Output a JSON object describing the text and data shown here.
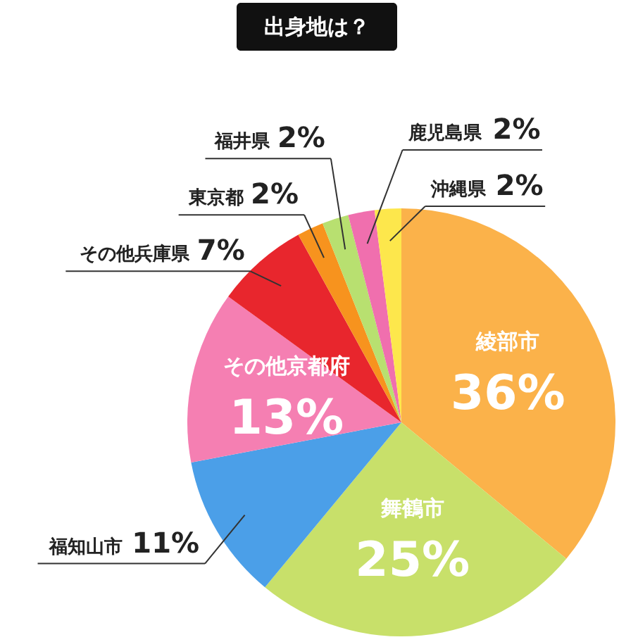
{
  "chart_data": {
    "type": "pie",
    "title": "出身地は？",
    "categories": [
      "綾部市",
      "舞鶴市",
      "福知山市",
      "その他京都府",
      "その他兵庫県",
      "東京都",
      "福井県",
      "鹿児島県",
      "沖縄県"
    ],
    "values": [
      36,
      25,
      11,
      13,
      7,
      2,
      2,
      2,
      2
    ],
    "colors": [
      "#fbb24a",
      "#c8e06a",
      "#4b9fe8",
      "#f57fb2",
      "#e8262d",
      "#f7931e",
      "#b8e070",
      "#f06fae",
      "#fde74c"
    ],
    "value_labels": [
      "36%",
      "25%",
      "11%",
      "13%",
      "7%",
      "2%",
      "2%",
      "2%",
      "2%"
    ]
  }
}
